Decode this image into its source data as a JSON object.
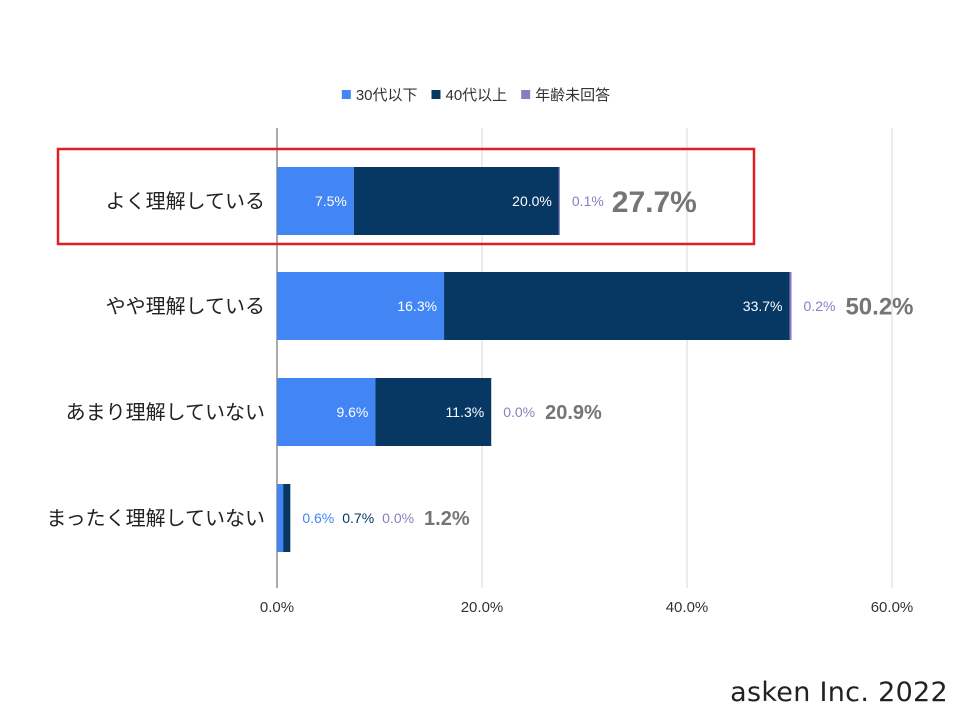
{
  "chart_data": {
    "type": "bar",
    "orientation": "horizontal",
    "stacked": true,
    "categories": [
      "よく理解している",
      "やや理解している",
      "あまり理解していない",
      "まったく理解していない"
    ],
    "series": [
      {
        "name": "30代以下",
        "color": "#4285f4",
        "values": [
          7.5,
          16.3,
          9.6,
          0.6
        ],
        "labels": [
          "7.5%",
          "16.3%",
          "9.6%",
          "0.6%"
        ]
      },
      {
        "name": "40代以上",
        "color": "#073763",
        "values": [
          20.0,
          33.7,
          11.3,
          0.7
        ],
        "labels": [
          "20.0%",
          "33.7%",
          "11.3%",
          "0.7%"
        ]
      },
      {
        "name": "年齢未回答",
        "color": "#8e7cc3",
        "values": [
          0.1,
          0.2,
          0.0,
          0.0
        ],
        "labels": [
          "0.1%",
          "0.2%",
          "0.0%",
          "0.0%"
        ]
      }
    ],
    "totals": [
      "27.7%",
      "50.2%",
      "20.9%",
      "1.2%"
    ],
    "x_ticks": [
      "0.0%",
      "20.0%",
      "40.0%",
      "60.0%"
    ],
    "xlim": [
      0,
      60
    ],
    "grid": true,
    "legend_position": "top",
    "highlighted_category": "よく理解している",
    "highlight_color": "#e02020",
    "total_label_color": "#757575"
  },
  "credit": "asken Inc. 2022"
}
